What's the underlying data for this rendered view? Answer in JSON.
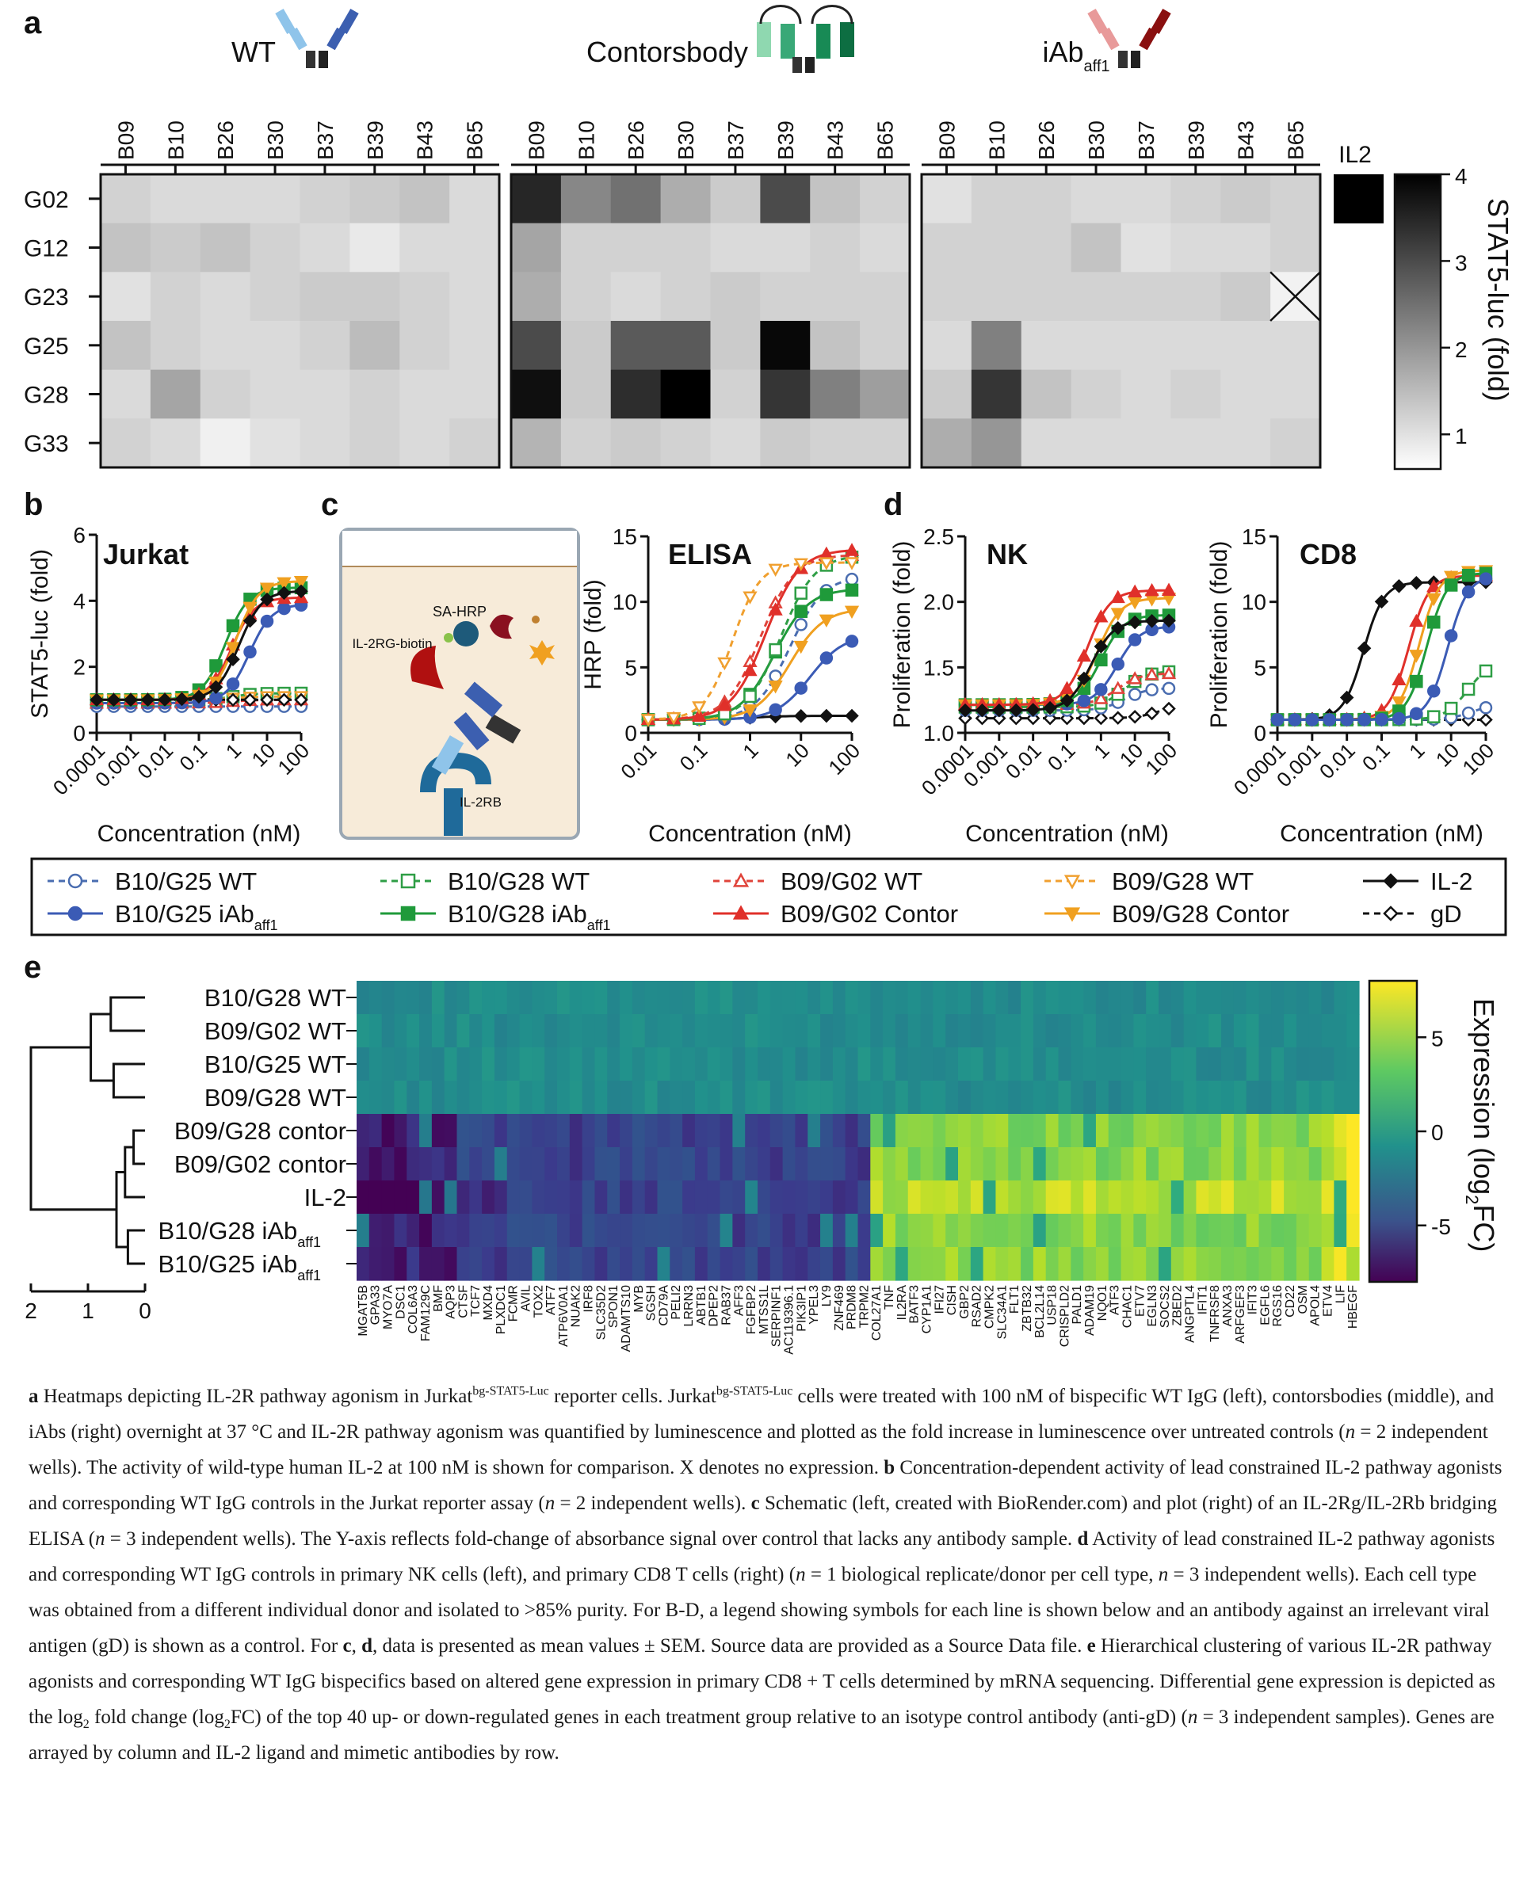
{
  "panel_letters": {
    "a": "a",
    "b": "b",
    "c": "c",
    "d": "d",
    "e": "e"
  },
  "panel_a": {
    "group_titles": [
      "WT",
      "Contorsbody",
      "iAb"
    ],
    "iab_subscript": "aff1",
    "columns": [
      "B09",
      "B10",
      "B26",
      "B30",
      "B37",
      "B39",
      "B43",
      "B65"
    ],
    "rows": [
      "G02",
      "G12",
      "G23",
      "G25",
      "G28",
      "G33"
    ],
    "il2_label": "IL2",
    "colorbar_title": "STAT5-luc  (fold)",
    "colorbar_ticks": [
      "1",
      "2",
      "3",
      "4"
    ],
    "il2_value": 4.0,
    "colors": {
      "low": "#ffffff",
      "high": "#000000"
    }
  },
  "panel_b": {
    "title": "Jurkat",
    "ylabel": "STAT5-luc (fold)",
    "xlabel": "Concentration (nM)",
    "yticks": [
      "0",
      "2",
      "4",
      "6"
    ],
    "xticks": [
      "0.0001",
      "0.001",
      "0.01",
      "0.1",
      "1",
      "10",
      "100"
    ]
  },
  "panel_c": {
    "title": "ELISA",
    "ylabel": "HRP (fold)",
    "xlabel": "Concentration (nM)",
    "yticks": [
      "0",
      "5",
      "10",
      "15"
    ],
    "xticks": [
      "0.01",
      "0.1",
      "1",
      "10",
      "100"
    ],
    "schematic_labels": {
      "sa_hrp": "SA-HRP",
      "il2rg": "IL-2RG-biotin",
      "il2rb": "IL-2RB"
    }
  },
  "panel_d_nk": {
    "title": "NK",
    "ylabel": "Proliferation (fold)",
    "xlabel": "Concentration (nM)",
    "yticks": [
      "1.0",
      "1.5",
      "2.0",
      "2.5"
    ],
    "xticks": [
      "0.0001",
      "0.001",
      "0.01",
      "0.1",
      "1",
      "10",
      "100"
    ]
  },
  "panel_d_cd8": {
    "title": "CD8",
    "ylabel": "Proliferation (fold)",
    "xlabel": "Concentration (nM)",
    "yticks": [
      "0",
      "5",
      "10",
      "15"
    ],
    "xticks": [
      "0.0001",
      "0.001",
      "0.01",
      "0.1",
      "1",
      "10",
      "100"
    ]
  },
  "legend": [
    {
      "label": "B10/G25 WT",
      "sub": "",
      "color": "#4a6db0",
      "marker": "circle-open",
      "dash": true
    },
    {
      "label": "B10/G25 iAb",
      "sub": "aff1",
      "color": "#3b5bb5",
      "marker": "circle",
      "dash": false
    },
    {
      "label": "B10/G28 WT",
      "sub": "",
      "color": "#2e9e45",
      "marker": "square-open",
      "dash": true
    },
    {
      "label": "B10/G28 iAb",
      "sub": "aff1",
      "color": "#1f9a3a",
      "marker": "square",
      "dash": false
    },
    {
      "label": "B09/G02 WT",
      "sub": "",
      "color": "#e0433a",
      "marker": "tri-open",
      "dash": true
    },
    {
      "label": "B09/G02 Contor",
      "sub": "",
      "color": "#e0302a",
      "marker": "tri",
      "dash": false
    },
    {
      "label": "B09/G28 WT",
      "sub": "",
      "color": "#f0a030",
      "marker": "tridown-open",
      "dash": true
    },
    {
      "label": "B09/G28 Contor",
      "sub": "",
      "color": "#f0a020",
      "marker": "tridown",
      "dash": false
    },
    {
      "label": "IL-2",
      "sub": "",
      "color": "#111111",
      "marker": "diamond",
      "dash": false
    },
    {
      "label": "gD",
      "sub": "",
      "color": "#111111",
      "marker": "diamond-open",
      "dash": true
    }
  ],
  "panel_e": {
    "rows": [
      {
        "label": "B10/G28 WT",
        "sub": ""
      },
      {
        "label": "B09/G02 WT",
        "sub": ""
      },
      {
        "label": "B10/G25 WT",
        "sub": ""
      },
      {
        "label": "B09/G28 WT",
        "sub": ""
      },
      {
        "label": "B09/G28 contor",
        "sub": ""
      },
      {
        "label": "B09/G02 contor",
        "sub": ""
      },
      {
        "label": "IL-2",
        "sub": ""
      },
      {
        "label": "B10/G28 iAb",
        "sub": "aff1"
      },
      {
        "label": "B10/G25 iAb",
        "sub": "aff1"
      }
    ],
    "dendro_ticks": [
      "2",
      "1",
      "0"
    ],
    "colorbar_title": "Expression (log",
    "colorbar_title_sub": "2",
    "colorbar_title_end": "FC)",
    "colorbar_ticks": [
      "5",
      "0",
      "-5"
    ],
    "genes": [
      "MGAT5B",
      "GPA33",
      "MYO7A",
      "DSC1",
      "COL6A3",
      "FAM129C",
      "BMF",
      "AQP3",
      "CTSF",
      "TCF7",
      "MXD4",
      "PLXDC1",
      "FCMR",
      "AVIL",
      "TOX2",
      "ATF7",
      "ATP6V0A1",
      "NUAK2",
      "IRF8",
      "SLC35D2",
      "SPON1",
      "ADAMTS10",
      "MYB",
      "SGSH",
      "CD79A",
      "PELI2",
      "LRRN3",
      "ABTB1",
      "DPEP2",
      "RAB37",
      "AFF3",
      "FGFBP2",
      "MTSS1L",
      "SERPINF1",
      "AC119396.1",
      "PIK3IP1",
      "YPEL3",
      "LY9",
      "ZNF469",
      "PRDM8",
      "TRPM2",
      "COL27A1",
      "TNF",
      "IL2RA",
      "BATF3",
      "CYP1A1",
      "IFI27",
      "CISH",
      "GBP2",
      "RSAD2",
      "CMPK2",
      "SLC34A1",
      "FLT1",
      "ZBTB32",
      "BCL2L14",
      "USP18",
      "CRISPLD2",
      "PALD1",
      "ADAM19",
      "NQO1",
      "ATF3",
      "CHAC1",
      "ETV7",
      "EGLN3",
      "SOCS2",
      "ZBED2",
      "ANGPTL4",
      "IFIT1",
      "TNFRSF8",
      "ANXA3",
      "ARFGEF3",
      "IFIT3",
      "EGFL6",
      "RGS16",
      "CD22",
      "OSM",
      "APOL4",
      "ETV4",
      "LIF",
      "HBEGF"
    ]
  },
  "caption": [
    {
      "t": "a",
      "b": true
    },
    {
      "t": " Heatmaps depicting IL-2R pathway agonism in Jurkat"
    },
    {
      "t": "bg-STAT5-Luc",
      "sup": true
    },
    {
      "t": " reporter cells. Jurkat"
    },
    {
      "t": "bg-STAT5-Luc",
      "sup": true
    },
    {
      "t": " cells were treated with 100 nM of bispecific WT IgG (left), contorsbodies (middle), and iAbs (right) overnight at 37 °C and IL-2R pathway agonism was quantified by luminescence and plotted as the fold increase in luminescence over untreated controls ("
    },
    {
      "t": "n",
      "i": true
    },
    {
      "t": " = 2 independent wells). The activity of wild-type human IL-2 at 100 nM is shown for comparison. X denotes no expression. "
    },
    {
      "t": "b",
      "b": true
    },
    {
      "t": " Concentration-dependent activity of lead constrained IL-2 pathway agonists and corresponding WT IgG controls in the Jurkat reporter assay ("
    },
    {
      "t": "n",
      "i": true
    },
    {
      "t": " = 2 independent wells). "
    },
    {
      "t": "c",
      "b": true
    },
    {
      "t": " Schematic (left, created with BioRender.com) and plot (right) of an IL-2Rg/IL-2Rb bridging ELISA ("
    },
    {
      "t": "n",
      "i": true
    },
    {
      "t": " = 3 independent wells). The Y-axis reflects fold-change of absorbance signal over control that lacks any antibody sample. "
    },
    {
      "t": "d",
      "b": true
    },
    {
      "t": " Activity of lead constrained IL-2 pathway agonists and corresponding WT IgG controls in primary NK cells (left), and primary CD8 T cells (right) ("
    },
    {
      "t": "n",
      "i": true
    },
    {
      "t": " = 1 biological replicate/donor per cell type, "
    },
    {
      "t": "n",
      "i": true
    },
    {
      "t": " = 3 independent wells). Each cell type was obtained from a different individual donor and isolated to >85% purity. For B-D, a legend showing symbols for each line is shown below and an antibody against an irrelevant viral antigen (gD) is shown as a control. For "
    },
    {
      "t": "c",
      "b": true
    },
    {
      "t": ", "
    },
    {
      "t": "d",
      "b": true
    },
    {
      "t": ", data is presented as mean values ± SEM. Source data are provided as a Source Data file. "
    },
    {
      "t": "e",
      "b": true
    },
    {
      "t": " Hierarchical clustering of various IL-2R pathway agonists and corresponding WT IgG bispecifics based on altered gene expression in primary CD8 + T cells determined by mRNA sequencing. Differential gene expression is depicted as the log"
    },
    {
      "t": "2",
      "sub": true
    },
    {
      "t": " fold change (log"
    },
    {
      "t": "2",
      "sub": true
    },
    {
      "t": "FC) of the top 40 up- or down-regulated genes in each treatment group relative to an isotype control antibody (anti-gD) ("
    },
    {
      "t": "n",
      "i": true
    },
    {
      "t": " = 3 independent samples). Genes are arrayed by column and IL-2 ligand and mimetic antibodies by row."
    }
  ]
}
